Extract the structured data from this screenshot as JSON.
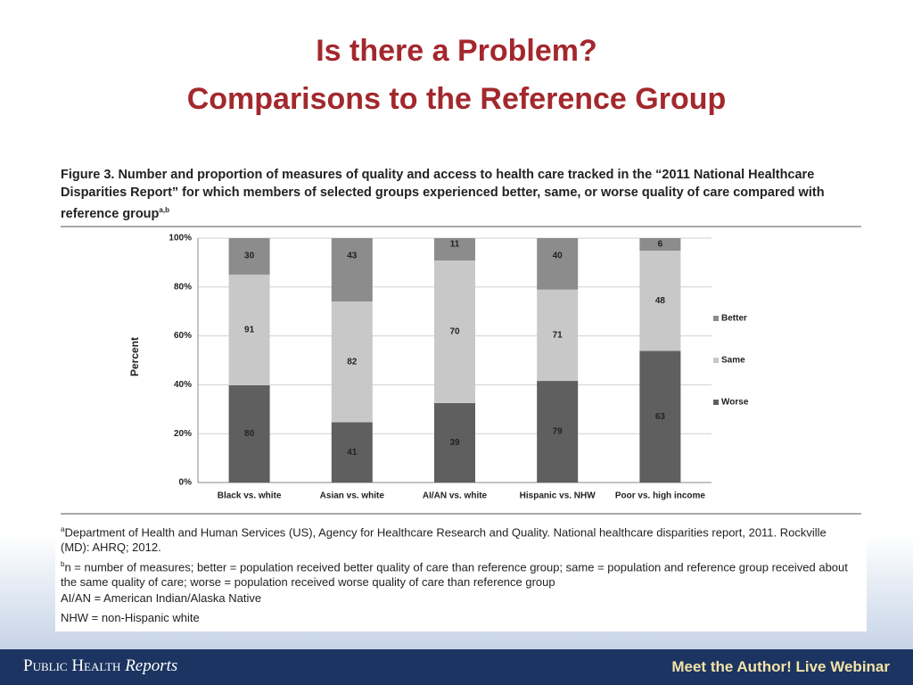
{
  "slide": {
    "title_line1": "Is there a Problem?",
    "title_line2": "Comparisons to the Reference Group"
  },
  "figure": {
    "caption": "Figure 3. Number and proportion of measures of quality and access to health care tracked in the “2011 National Healthcare Disparities Report” for which members of selected groups experienced better, same, or worse quality of care compared with reference group",
    "caption_sup": "a,b"
  },
  "notes": [
    {
      "marker": "a",
      "text": "Department of Health and Human Services (US), Agency for Healthcare Research and Quality. National healthcare disparities report, 2011. Rockville (MD): AHRQ; 2012."
    },
    {
      "marker": "b",
      "text": "n = number of measures; better = population received better quality of care than reference group; same = population and reference group received about the same quality of care; worse = population received worse quality of care than reference group"
    },
    {
      "text": "AI/AN = American Indian/Alaska Native"
    },
    {
      "text": "NHW = non-Hispanic white"
    }
  ],
  "footer": {
    "journal": "Public Health",
    "journal_italic": "Reports",
    "right": "Meet the Author! Live Webinar"
  },
  "chart_data": {
    "type": "bar",
    "stacking": "percent",
    "ylabel": "Percent",
    "categories": [
      "Black vs. white",
      "Asian vs. white",
      "AI/AN vs. white",
      "Hispanic vs. NHW",
      "Poor vs. high income"
    ],
    "series": [
      {
        "name": "Worse",
        "color": "#5f5f5f",
        "values": [
          80,
          41,
          39,
          79,
          63
        ]
      },
      {
        "name": "Same",
        "color": "#c8c8c8",
        "values": [
          91,
          82,
          70,
          71,
          48
        ]
      },
      {
        "name": "Better",
        "color": "#8c8c8c",
        "values": [
          30,
          43,
          11,
          40,
          6
        ]
      }
    ],
    "ylim": [
      0,
      100
    ],
    "yticks": [
      {
        "value": 0,
        "label": "0%"
      },
      {
        "value": 20,
        "label": "20%"
      },
      {
        "value": 40,
        "label": "40%"
      },
      {
        "value": 60,
        "label": "60%"
      },
      {
        "value": 80,
        "label": "80%"
      },
      {
        "value": 100,
        "label": "100%"
      }
    ],
    "grid": true,
    "legend": "right"
  }
}
